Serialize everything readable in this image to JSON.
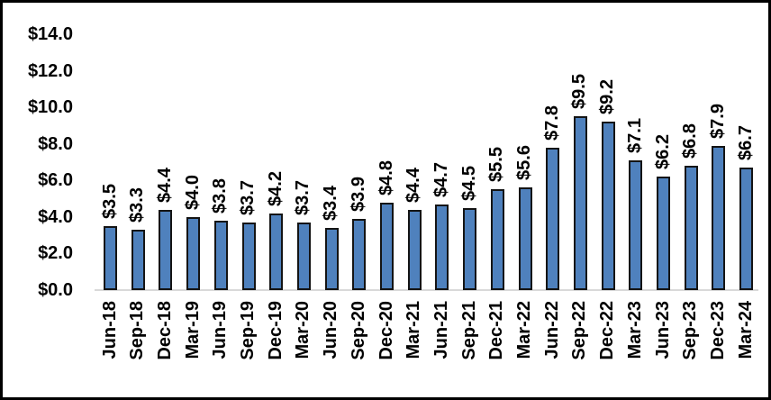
{
  "chart_data": {
    "type": "bar",
    "title": "",
    "xlabel": "",
    "ylabel": "",
    "grid": false,
    "legend": "none",
    "categories": [
      "Jun-18",
      "Sep-18",
      "Dec-18",
      "Mar-19",
      "Jun-19",
      "Sep-19",
      "Dec-19",
      "Mar-20",
      "Jun-20",
      "Sep-20",
      "Dec-20",
      "Mar-21",
      "Jun-21",
      "Sep-21",
      "Dec-21",
      "Mar-22",
      "Jun-22",
      "Sep-22",
      "Dec-22",
      "Mar-23",
      "Jun-23",
      "Sep-23",
      "Dec-23",
      "Mar-24"
    ],
    "values": [
      3.5,
      3.3,
      4.4,
      4.0,
      3.8,
      3.7,
      4.2,
      3.7,
      3.4,
      3.9,
      4.8,
      4.4,
      4.7,
      4.5,
      5.5,
      5.6,
      7.8,
      9.5,
      9.2,
      7.1,
      6.2,
      6.8,
      7.9,
      6.7
    ],
    "bar_labels": [
      "$3.5",
      "$3.3",
      "$4.4",
      "$4.0",
      "$3.8",
      "$3.7",
      "$4.2",
      "$3.7",
      "$3.4",
      "$3.9",
      "$4.8",
      "$4.4",
      "$4.7",
      "$4.5",
      "$5.5",
      "$5.6",
      "$7.8",
      "$9.5",
      "$9.2",
      "$7.1",
      "$6.2",
      "$6.8",
      "$7.9",
      "$6.7"
    ],
    "y_axis": {
      "tick_values": [
        0,
        2,
        4,
        6,
        8,
        10,
        12,
        14
      ],
      "tick_labels": [
        "$0.0",
        "$2.0",
        "$4.0",
        "$6.0",
        "$8.0",
        "$10.0",
        "$12.0",
        "$14.0"
      ],
      "range": [
        0,
        14
      ]
    },
    "label_rotation_degrees": 90,
    "colors": {
      "bar_fill": "#4F81BD",
      "bar_border": "#141414",
      "axis_line": "#D9D9D9",
      "text": "#000000",
      "background": "#FFFFFF",
      "frame_border": "#000000"
    }
  }
}
